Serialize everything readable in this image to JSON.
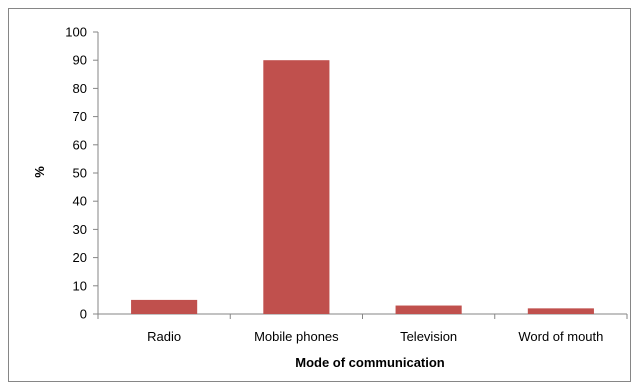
{
  "chart_data": {
    "type": "bar",
    "title": "",
    "xlabel": "Mode of communication",
    "ylabel": "%",
    "categories": [
      "Radio",
      "Mobile phones",
      "Television",
      "Word of mouth"
    ],
    "series": [
      {
        "values": [
          5,
          90,
          3,
          2
        ]
      }
    ],
    "ylim": [
      0,
      100
    ],
    "yticks": [
      "0",
      "10",
      "20",
      "30",
      "40",
      "50",
      "60",
      "70",
      "80",
      "90",
      "100"
    ],
    "grid": false,
    "legend": "none",
    "colors": {
      "bar": "#C0504D",
      "axis": "#868686",
      "frame": "#868686"
    }
  }
}
